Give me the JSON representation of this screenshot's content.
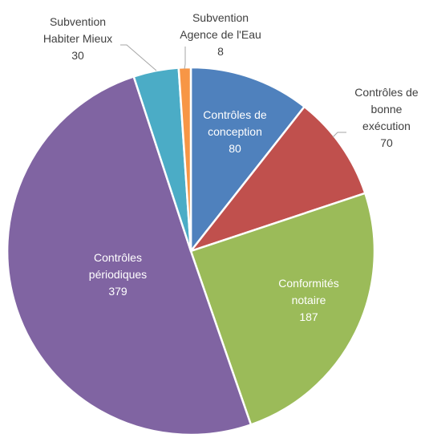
{
  "chart_data": {
    "type": "pie",
    "title": "",
    "start": "top, clockwise",
    "slices": [
      {
        "lines": [
          "Contrôles de",
          "conception"
        ],
        "value": 80,
        "color": "#4f81bd",
        "label_style": "inside-light"
      },
      {
        "lines": [
          "Contrôles de",
          "bonne",
          "exécution"
        ],
        "value": 70,
        "color": "#c0504d",
        "label_style": "outside"
      },
      {
        "lines": [
          "Conformités",
          "notaire"
        ],
        "value": 187,
        "color": "#9bbb59",
        "label_style": "inside-light"
      },
      {
        "lines": [
          "Contrôles",
          "périodiques"
        ],
        "value": 379,
        "color": "#8064a2",
        "label_style": "inside-light"
      },
      {
        "lines": [
          "Subvention",
          "Habiter Mieux"
        ],
        "value": 30,
        "color": "#4bacc6",
        "label_style": "outside"
      },
      {
        "lines": [
          "Subvention",
          "Agence de l'Eau"
        ],
        "value": 8,
        "color": "#f79646",
        "label_style": "outside"
      }
    ]
  }
}
